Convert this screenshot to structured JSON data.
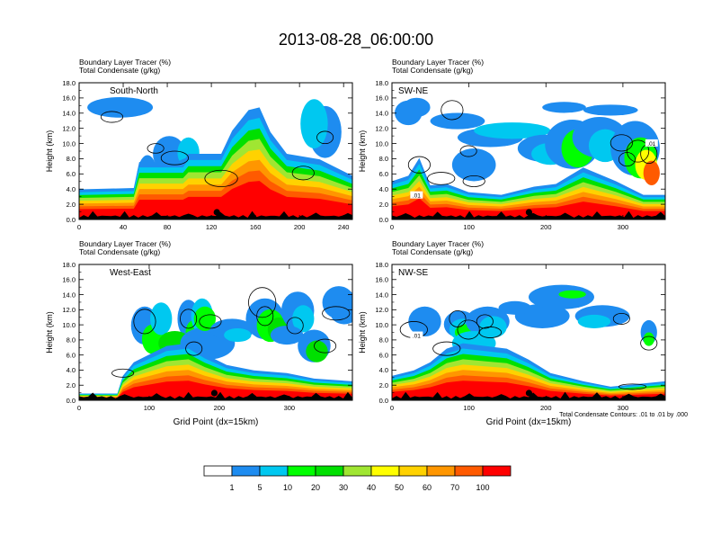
{
  "figure_title": "2013-08-28_06:00:00",
  "colors": {
    "scale": [
      "#ffffff",
      "#1e8cf0",
      "#00c8f0",
      "#00ff00",
      "#00e000",
      "#a0e632",
      "#ffff00",
      "#ffd200",
      "#ff9600",
      "#ff5a00",
      "#ff0000"
    ],
    "background": "#ffffff",
    "axis": "#000000"
  },
  "footnote": "Total Condensate Contours: .01 to .01 by .000",
  "chart_data": [
    {
      "type": "heatmap",
      "panel": "South-North",
      "title": "South-North",
      "header_line1": "Boundary Layer Tracer   (%)",
      "header_line2": "Total Condensate   (g/kg)",
      "ylabel": "Height (km)",
      "xlabel": "",
      "xlim": [
        0,
        248
      ],
      "ylim": [
        0,
        18
      ],
      "x_ticks": [
        "0",
        "40",
        "80",
        "120",
        "160",
        "200",
        "240"
      ],
      "y_ticks": [
        "0.0",
        "2.0",
        "4.0",
        "6.0",
        "8.0",
        "10.0",
        "12.0",
        "14.0",
        "16.0",
        "18.0"
      ],
      "marker_x": 125
    },
    {
      "type": "heatmap",
      "panel": "SW-NE",
      "title": "SW-NE",
      "header_line1": "Boundary Layer Tracer   (%)",
      "header_line2": "Total Condensate   (g/kg)",
      "ylabel": "Height (km)",
      "xlabel": "",
      "xlim": [
        0,
        355
      ],
      "ylim": [
        0,
        18
      ],
      "x_ticks": [
        "0",
        "100",
        "200",
        "300"
      ],
      "y_ticks": [
        "0.0",
        "2.0",
        "4.0",
        "6.0",
        "8.0",
        "10.0",
        "12.0",
        "14.0",
        "16.0",
        "18.0"
      ],
      "contour_labels": [
        ".01",
        ".01"
      ],
      "marker_x": 178
    },
    {
      "type": "heatmap",
      "panel": "West-East",
      "title": "West-East",
      "header_line1": "Boundary Layer Tracer   (%)",
      "header_line2": "Total Condensate   (g/kg)",
      "ylabel": "Height (km)",
      "xlabel": "Grid Point (dx=15km)",
      "xlim": [
        0,
        390
      ],
      "ylim": [
        0,
        18
      ],
      "x_ticks": [
        "0",
        "100",
        "200",
        "300"
      ],
      "y_ticks": [
        "0.0",
        "2.0",
        "4.0",
        "6.0",
        "8.0",
        "10.0",
        "12.0",
        "14.0",
        "16.0",
        "18.0"
      ],
      "marker_x": 193
    },
    {
      "type": "heatmap",
      "panel": "NW-SE",
      "title": "NW-SE",
      "header_line1": "Boundary Layer Tracer   (%)",
      "header_line2": "Total Condensate   (g/kg)",
      "ylabel": "Height (km)",
      "xlabel": "Grid Point (dx=15km)",
      "xlim": [
        0,
        355
      ],
      "ylim": [
        0,
        18
      ],
      "x_ticks": [
        "0",
        "100",
        "200",
        "300"
      ],
      "y_ticks": [
        "0.0",
        "2.0",
        "4.0",
        "6.0",
        "8.0",
        "10.0",
        "12.0",
        "14.0",
        "16.0",
        "18.0"
      ],
      "contour_labels": [
        ".01"
      ],
      "marker_x": 178
    },
    {
      "type": "colorbar",
      "labels": [
        "1",
        "5",
        "10",
        "20",
        "30",
        "40",
        "50",
        "60",
        "70",
        "100"
      ]
    }
  ]
}
